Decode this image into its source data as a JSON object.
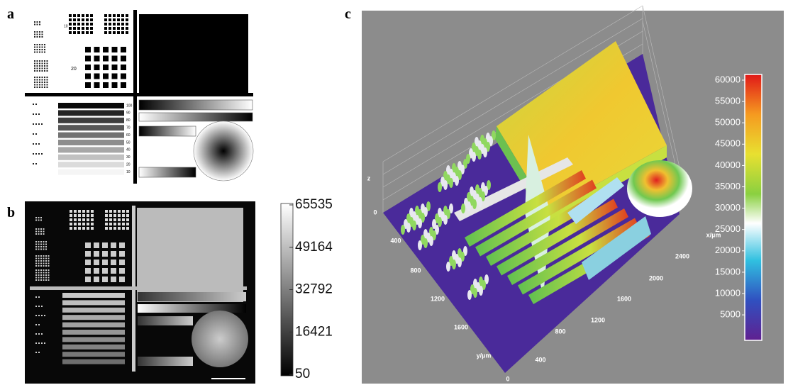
{
  "panels": [
    {
      "label": "a",
      "numbers": [
        "10",
        "20"
      ],
      "scale_labels": [
        "100",
        "90",
        "80",
        "70",
        "60",
        "50",
        "40",
        "30",
        "20",
        "10"
      ]
    },
    {
      "label": "b",
      "colorbar_ticks": [
        "65535",
        "49164",
        "32792",
        "16421",
        "50"
      ]
    },
    {
      "label": "c",
      "colorbar_ticks": [
        "60000",
        "55000",
        "50000",
        "45000",
        "40000",
        "35000",
        "30000",
        "25000",
        "20000",
        "15000",
        "10000",
        "5000"
      ],
      "z_label": "z",
      "z_tick": "0",
      "x_label": "x/µm",
      "x_ticks": [
        "400",
        "800",
        "1200",
        "1600",
        "2000",
        "2400"
      ],
      "y_label": "y/µm",
      "y_ticks": [
        "0",
        "400",
        "800",
        "1200",
        "1600"
      ]
    }
  ]
}
